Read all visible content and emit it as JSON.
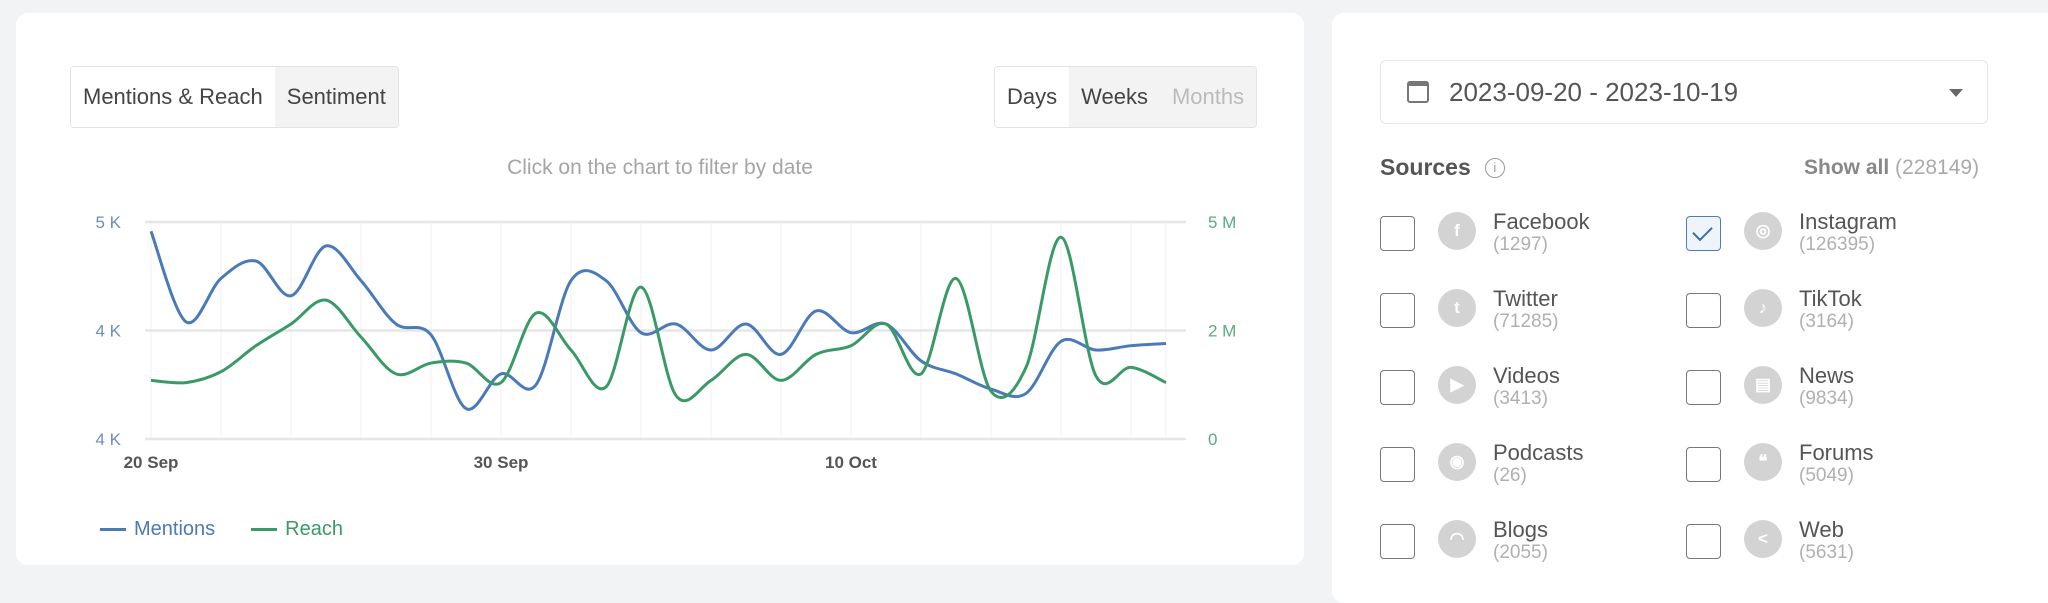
{
  "tabs": {
    "view": [
      {
        "label": "Mentions & Reach",
        "active": true
      },
      {
        "label": "Sentiment",
        "active": false
      }
    ],
    "period": [
      {
        "label": "Days",
        "active": true
      },
      {
        "label": "Weeks",
        "active": false
      },
      {
        "label": "Months",
        "disabled": true
      }
    ]
  },
  "hint": "Click on the chart to filter by date",
  "chart_data": {
    "type": "line",
    "title": "",
    "x_start": "2023-09-20",
    "x_tick_labels": [
      "20 Sep",
      "30 Sep",
      "10 Oct"
    ],
    "x_tick_days": [
      0,
      10,
      20
    ],
    "y_left": {
      "tick_labels": [
        "5 K",
        "4 K",
        "4 K"
      ],
      "ylim": [
        3500,
        4500
      ]
    },
    "y_right": {
      "tick_labels": [
        "5 M",
        "2 M",
        "0"
      ],
      "ylim": [
        0,
        5
      ]
    },
    "grid": true,
    "legend": "bottom-left",
    "series": [
      {
        "name": "Mentions",
        "axis": "left",
        "color": "#4a7ab8",
        "values": [
          4457,
          4040,
          4240,
          4320,
          4160,
          4390,
          4230,
          4030,
          3980,
          3640,
          3800,
          3750,
          4230,
          4230,
          3990,
          4030,
          3910,
          4030,
          3890,
          4090,
          3990,
          4030,
          3860,
          3800,
          3730,
          3710,
          3950,
          3910,
          3930,
          3940
        ]
      },
      {
        "name": "Reach",
        "axis": "right",
        "color": "#3a9a67",
        "values": [
          1.35,
          1.3,
          1.55,
          2.15,
          2.65,
          3.2,
          2.35,
          1.5,
          1.75,
          1.75,
          1.3,
          2.9,
          2.05,
          1.2,
          3.5,
          1.0,
          1.35,
          1.95,
          1.35,
          1.95,
          2.15,
          2.65,
          1.5,
          3.7,
          1.1,
          1.65,
          4.65,
          1.45,
          1.65,
          1.3
        ]
      }
    ]
  },
  "date_range": "2023-09-20 - 2023-10-19",
  "sources": {
    "title": "Sources",
    "show_all_label": "Show all",
    "show_all_count": "(228149)",
    "items": [
      {
        "name": "Facebook",
        "count": "(1297)",
        "icon": "facebook-icon",
        "glyph": "f",
        "checked": false
      },
      {
        "name": "Instagram",
        "count": "(126395)",
        "icon": "instagram-icon",
        "glyph": "◎",
        "checked": true
      },
      {
        "name": "Twitter",
        "count": "(71285)",
        "icon": "twitter-icon",
        "glyph": "t",
        "checked": false
      },
      {
        "name": "TikTok",
        "count": "(3164)",
        "icon": "tiktok-icon",
        "glyph": "♪",
        "checked": false
      },
      {
        "name": "Videos",
        "count": "(3413)",
        "icon": "play-icon",
        "glyph": "▶",
        "checked": false
      },
      {
        "name": "News",
        "count": "(9834)",
        "icon": "news-icon",
        "glyph": "▤",
        "checked": false
      },
      {
        "name": "Podcasts",
        "count": "(26)",
        "icon": "podcast-icon",
        "glyph": "◉",
        "checked": false
      },
      {
        "name": "Forums",
        "count": "(5049)",
        "icon": "forums-icon",
        "glyph": "❝",
        "checked": false
      },
      {
        "name": "Blogs",
        "count": "(2055)",
        "icon": "rss-icon",
        "glyph": "◠",
        "checked": false
      },
      {
        "name": "Web",
        "count": "(5631)",
        "icon": "share-icon",
        "glyph": "<",
        "checked": false
      }
    ]
  }
}
